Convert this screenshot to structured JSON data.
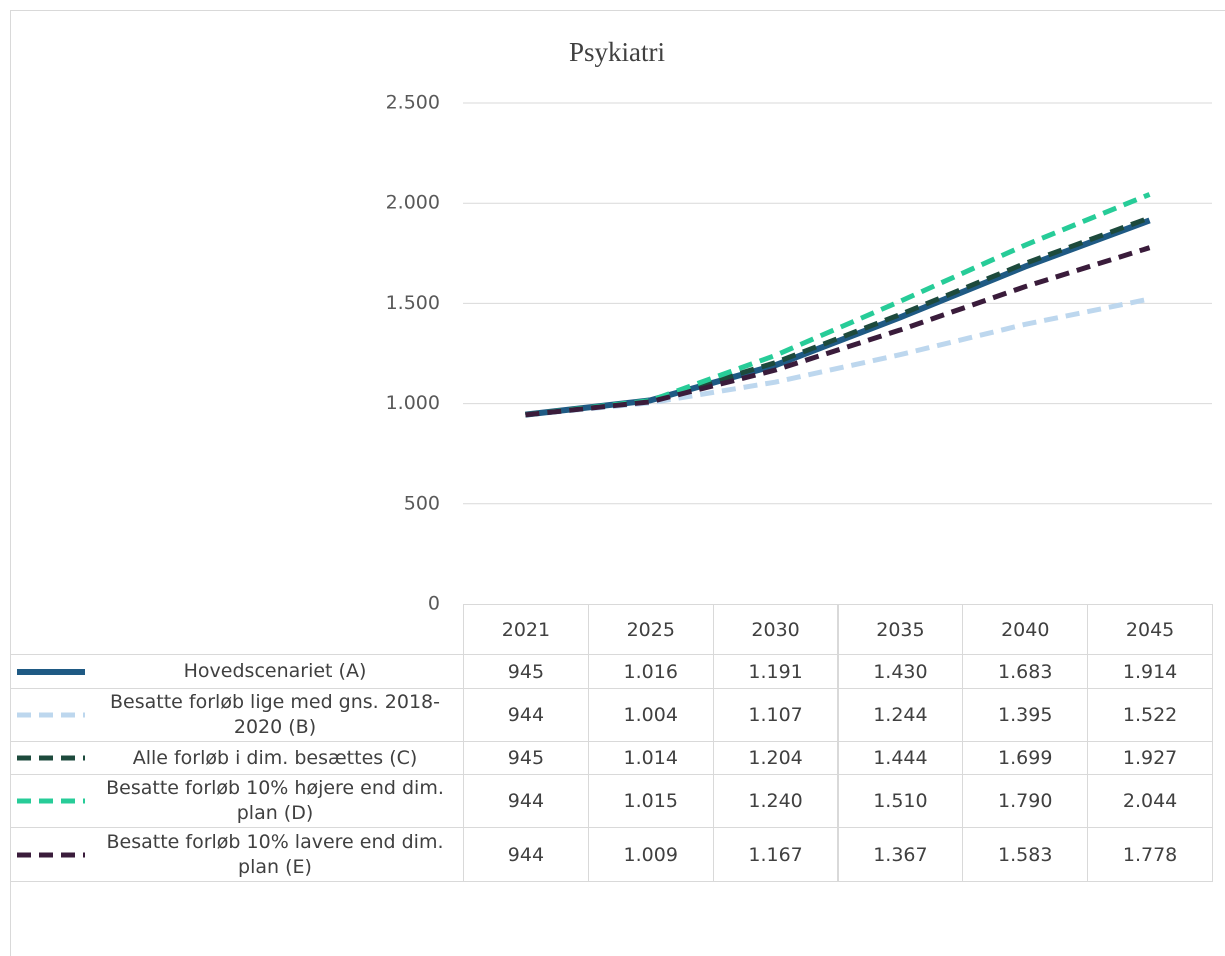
{
  "chart_data": {
    "type": "line",
    "title": "Psykiatri",
    "categories": [
      "2021",
      "2025",
      "2030",
      "2035",
      "2040",
      "2045"
    ],
    "ylim": [
      0,
      2500
    ],
    "yticks": [
      0,
      {
        "value": 500,
        "label": "500"
      },
      {
        "value": 1000,
        "label": "1.000"
      },
      {
        "value": 1500,
        "label": "1.500"
      },
      {
        "value": 2000,
        "label": "2.000"
      },
      {
        "value": 2500,
        "label": "2.500"
      }
    ],
    "grid": true,
    "series": [
      {
        "name": "Hovedscenariet (A)",
        "color": "#1f5a84",
        "dash": false,
        "values": [
          945,
          1016,
          1191,
          1430,
          1683,
          1914
        ],
        "value_labels": [
          "945",
          "1.016",
          "1.191",
          "1.430",
          "1.683",
          "1.914"
        ]
      },
      {
        "name": "Besatte forløb lige med gns. 2018-2020 (B)",
        "color": "#bdd7ee",
        "dash": true,
        "values": [
          944,
          1004,
          1107,
          1244,
          1395,
          1522
        ],
        "value_labels": [
          "944",
          "1.004",
          "1.107",
          "1.244",
          "1.395",
          "1.522"
        ]
      },
      {
        "name": "Alle forløb i dim. besættes (C)",
        "color": "#1d4a3c",
        "dash": true,
        "values": [
          945,
          1014,
          1204,
          1444,
          1699,
          1927
        ],
        "value_labels": [
          "945",
          "1.014",
          "1.204",
          "1.444",
          "1.699",
          "1.927"
        ]
      },
      {
        "name": "Besatte forløb 10% højere end dim. plan (D)",
        "color": "#27cc98",
        "dash": true,
        "values": [
          944,
          1015,
          1240,
          1510,
          1790,
          2044
        ],
        "value_labels": [
          "944",
          "1.015",
          "1.240",
          "1.510",
          "1.790",
          "2.044"
        ]
      },
      {
        "name": "Besatte forløb 10% lavere end dim. plan (E)",
        "color": "#3a1c3b",
        "dash": true,
        "values": [
          944,
          1009,
          1167,
          1367,
          1583,
          1778
        ],
        "value_labels": [
          "944",
          "1.009",
          "1.167",
          "1.367",
          "1.583",
          "1.778"
        ]
      }
    ]
  }
}
